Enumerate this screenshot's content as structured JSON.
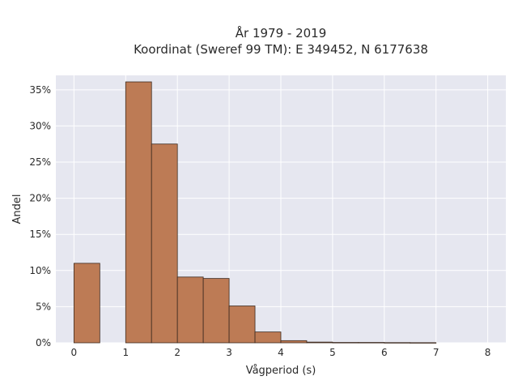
{
  "chart_data": {
    "type": "bar",
    "title_line1": "År 1979 - 2019",
    "title_line2": "Koordinat (Sweref 99 TM): E 349452, N 6177638",
    "xlabel": "Vågperiod (s)",
    "ylabel": "Andel",
    "xlim": [
      -0.35,
      8.35
    ],
    "ylim": [
      0,
      37
    ],
    "x_ticks": [
      0,
      1,
      2,
      3,
      4,
      5,
      6,
      7,
      8
    ],
    "y_ticks": [
      0,
      5,
      10,
      15,
      20,
      25,
      30,
      35
    ],
    "y_tick_labels": [
      "0%",
      "5%",
      "10%",
      "15%",
      "20%",
      "25%",
      "30%",
      "35%"
    ],
    "bin_width": 0.5,
    "bins": [
      {
        "start": 0.0,
        "value": 11.0
      },
      {
        "start": 0.5,
        "value": 0.0
      },
      {
        "start": 1.0,
        "value": 36.1
      },
      {
        "start": 1.5,
        "value": 27.5
      },
      {
        "start": 2.0,
        "value": 9.1
      },
      {
        "start": 2.5,
        "value": 8.9
      },
      {
        "start": 3.0,
        "value": 5.1
      },
      {
        "start": 3.5,
        "value": 1.5
      },
      {
        "start": 4.0,
        "value": 0.3
      },
      {
        "start": 4.5,
        "value": 0.1
      },
      {
        "start": 5.0,
        "value": 0.05
      },
      {
        "start": 5.5,
        "value": 0.05
      },
      {
        "start": 6.0,
        "value": 0.03
      },
      {
        "start": 6.5,
        "value": 0.02
      }
    ],
    "grid": true,
    "colors": {
      "bar_fill": "#bd7b55",
      "bar_stroke": "#3d2a1f",
      "plot_background": "#e6e7f0",
      "grid_line": "#ffffff"
    }
  }
}
